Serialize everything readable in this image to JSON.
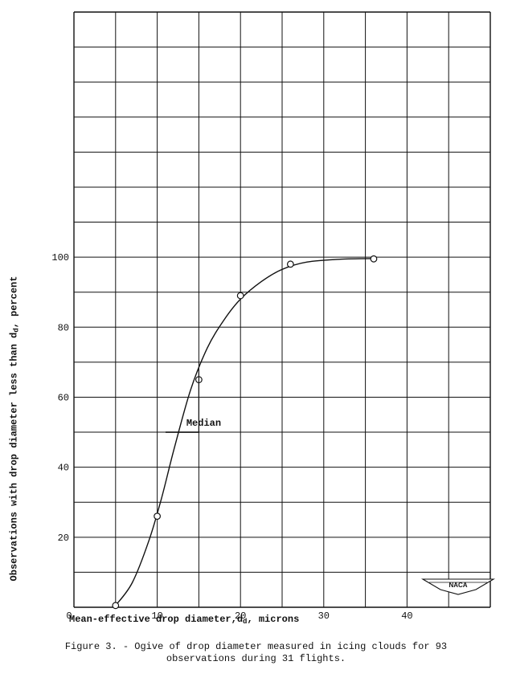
{
  "chart_data": {
    "type": "line",
    "xlabel_main": "Mean-effective drop diameter,",
    "xlabel_symbol": "d",
    "xlabel_sub": "d",
    "xlabel_unit": ", microns",
    "ylabel_main": "Observations with drop diameter less than ",
    "ylabel_symbol": "d",
    "ylabel_sub": "d",
    "ylabel_unit": ", percent",
    "xlim": [
      0,
      50
    ],
    "ylim": [
      0,
      170
    ],
    "x_ticks": [
      0,
      10,
      20,
      30,
      40
    ],
    "y_ticks": [
      20,
      40,
      60,
      80,
      100
    ],
    "grid": true,
    "series": [
      {
        "x": [
          5,
          10,
          15,
          20,
          26,
          36
        ],
        "y": [
          0.5,
          26,
          65,
          89,
          98,
          99.5
        ]
      }
    ],
    "curve": {
      "x": [
        5,
        7,
        9,
        10.5,
        12,
        14,
        16,
        18,
        20,
        22.5,
        25,
        28,
        32,
        36
      ],
      "y": [
        0.5,
        7,
        19,
        31,
        45,
        62,
        74,
        82,
        88,
        93,
        96.5,
        98.6,
        99.4,
        99.6
      ]
    },
    "annotations": {
      "median_label": "Median",
      "median_y": 50
    },
    "logo": "NACA"
  },
  "caption": {
    "line1": "Figure 3. - Ogive of drop diameter measured in icing clouds for 93",
    "line2": "observations during 31 flights."
  }
}
